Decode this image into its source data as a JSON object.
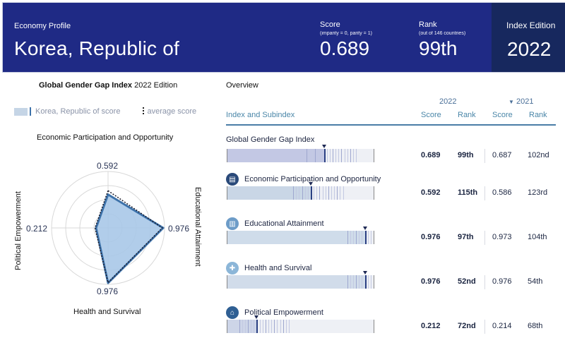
{
  "header": {
    "eyebrow": "Economy Profile",
    "country": "Korea, Republic of",
    "score_label": "Score",
    "score_sub": "(imparity = 0, parity = 1)",
    "score_value": "0.689",
    "rank_label": "Rank",
    "rank_sub": "(out of 146 countries)",
    "rank_value": "99th",
    "edition_label": "Index Edition",
    "edition_value": "2022"
  },
  "left": {
    "title_bold": "Global Gender Gap Index",
    "title_rest": " 2022 Edition",
    "legend_country": "Korea, Republic of score",
    "legend_average": "average score",
    "axis_top": "Economic Participation and Opportunity",
    "axis_right": "Educational Attainment",
    "axis_bottom": "Health and Survival",
    "axis_left": "Political Empowerment",
    "value_top": "0.592",
    "value_right": "0.976",
    "value_bottom": "0.976",
    "value_left": "0.212"
  },
  "chart_data": {
    "type": "radar",
    "axes": [
      "Economic Participation and Opportunity",
      "Educational Attainment",
      "Health and Survival",
      "Political Empowerment"
    ],
    "series": [
      {
        "name": "Korea, Republic of score",
        "values": [
          0.592,
          0.976,
          0.976,
          0.212
        ]
      },
      {
        "name": "average score",
        "values": [
          0.66,
          0.96,
          0.97,
          0.23
        ]
      }
    ],
    "range": [
      0,
      1
    ],
    "rings": 4
  },
  "overview": {
    "title": "Overview",
    "year_current": "2022",
    "year_previous": "2021",
    "col_index": "Index and Subindex",
    "col_score": "Score",
    "col_rank": "Rank",
    "col_score_prev": "Score",
    "col_rank_prev": "Rank",
    "colors": {
      "fill": "#bfc6e3",
      "marker": "#2a3f82"
    },
    "rows": [
      {
        "name": "Global Gender Gap Index",
        "icon": "",
        "score": "0.689",
        "rank": "99th",
        "score_prev": "0.687",
        "rank_prev": "102nd",
        "position": 0.66
      },
      {
        "name": "Economic Participation and Opportunity",
        "icon": "economic-icon",
        "score": "0.592",
        "rank": "115th",
        "score_prev": "0.586",
        "rank_prev": "123rd",
        "position": 0.57
      },
      {
        "name": "Educational Attainment",
        "icon": "education-icon",
        "score": "0.976",
        "rank": "97th",
        "score_prev": "0.973",
        "rank_prev": "104th",
        "position": 0.94
      },
      {
        "name": "Health and Survival",
        "icon": "health-icon",
        "score": "0.976",
        "rank": "52nd",
        "score_prev": "0.976",
        "rank_prev": "54th",
        "position": 0.94
      },
      {
        "name": "Political Empowerment",
        "icon": "political-icon",
        "score": "0.212",
        "rank": "72nd",
        "score_prev": "0.214",
        "rank_prev": "68th",
        "position": 0.2
      }
    ]
  }
}
